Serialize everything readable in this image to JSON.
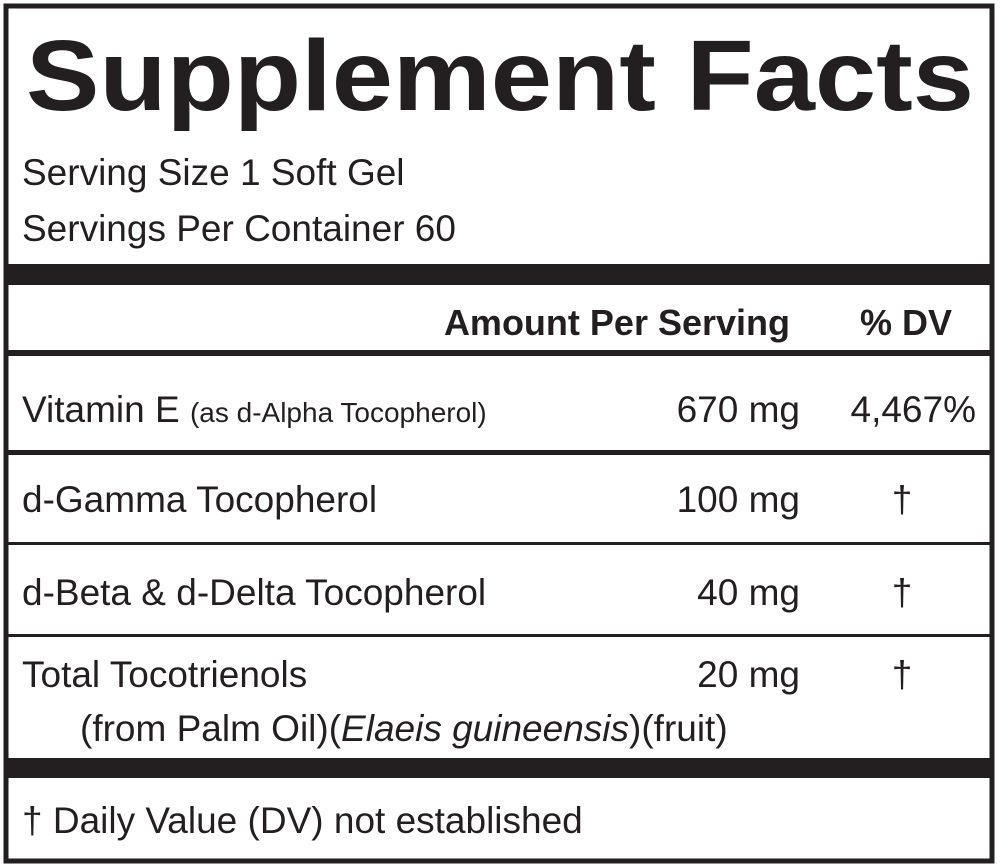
{
  "title": "Supplement Facts",
  "serving_size": "Serving Size 1 Soft Gel",
  "servings_per_container": "Servings Per Container 60",
  "header": {
    "amount": "Amount Per Serving",
    "dv": "% DV"
  },
  "rows": [
    {
      "name": "Vitamin E",
      "qualifier": "(as d-Alpha Tocopherol)",
      "amount": "670 mg",
      "dv": "4,467%"
    },
    {
      "name": "d-Gamma Tocopherol",
      "amount": "100 mg",
      "dv": "†"
    },
    {
      "name": "d-Beta & d-Delta Tocopherol",
      "amount": "40 mg",
      "dv": "†"
    },
    {
      "name": "Total Tocotrienols",
      "amount": "20 mg",
      "dv": "†",
      "source_prefix": "(from Palm Oil)(",
      "source_italic": "Elaeis guineensis",
      "source_suffix": ")(fruit)"
    }
  ],
  "footnote": "† Daily Value (DV) not established"
}
